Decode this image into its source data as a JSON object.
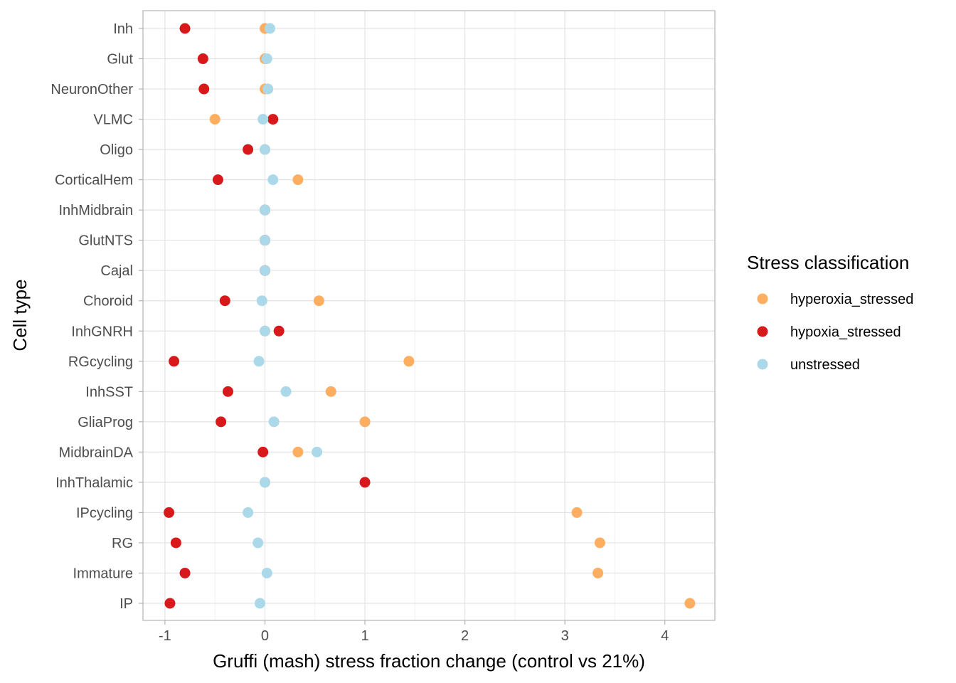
{
  "chart_data": {
    "type": "scatter",
    "xlabel": "Gruffi (mash) stress fraction change (control vs 21%)",
    "ylabel": "Cell type",
    "xlim": [
      -1.22,
      4.5
    ],
    "x_ticks": [
      -1,
      0,
      1,
      2,
      3,
      4
    ],
    "x_tick_labels": [
      "-1",
      "0",
      "1",
      "2",
      "3",
      "4"
    ],
    "categories": [
      "Inh",
      "Glut",
      "NeuronOther",
      "VLMC",
      "Oligo",
      "CorticalHem",
      "InhMidbrain",
      "GlutNTS",
      "Cajal",
      "Choroid",
      "InhGNRH",
      "RGcycling",
      "InhSST",
      "GliaProg",
      "MidbrainDA",
      "InhThalamic",
      "IPcycling",
      "RG",
      "Immature",
      "IP"
    ],
    "grid": true,
    "legend": {
      "title": "Stress classification",
      "position": "right"
    },
    "series": [
      {
        "name": "hyperoxia_stressed",
        "color": "#fdae61",
        "values": [
          0.0,
          0.0,
          0.0,
          -0.5,
          0.0,
          0.33,
          0.0,
          0.0,
          0.0,
          0.54,
          0.0,
          1.44,
          0.66,
          1.0,
          0.33,
          0.0,
          3.12,
          3.35,
          3.33,
          4.25
        ]
      },
      {
        "name": "hypoxia_stressed",
        "color": "#d7191c",
        "values": [
          -0.8,
          -0.62,
          -0.61,
          0.08,
          -0.17,
          -0.47,
          0.0,
          0.0,
          0.0,
          -0.4,
          0.14,
          -0.91,
          -0.37,
          -0.44,
          -0.02,
          1.0,
          -0.96,
          -0.89,
          -0.8,
          -0.95
        ]
      },
      {
        "name": "unstressed",
        "color": "#abd9e9",
        "values": [
          0.05,
          0.02,
          0.03,
          -0.02,
          0.0,
          0.08,
          0.0,
          0.0,
          0.0,
          -0.03,
          0.0,
          -0.06,
          0.21,
          0.09,
          0.52,
          0.0,
          -0.17,
          -0.07,
          0.02,
          -0.05
        ]
      }
    ]
  }
}
